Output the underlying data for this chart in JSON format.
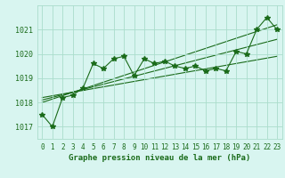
{
  "title": "Graphe pression niveau de la mer (hPa)",
  "background_color": "#d8f5f0",
  "grid_color": "#aaddcc",
  "line_color": "#1a6b1a",
  "x_ticks": [
    0,
    1,
    2,
    3,
    4,
    5,
    6,
    7,
    8,
    9,
    10,
    11,
    12,
    13,
    14,
    15,
    16,
    17,
    18,
    19,
    20,
    21,
    22,
    23
  ],
  "y_ticks": [
    1017,
    1018,
    1019,
    1020,
    1021
  ],
  "ylim": [
    1016.5,
    1022.0
  ],
  "xlim": [
    -0.5,
    23.5
  ],
  "main_data": [
    1017.5,
    1017.0,
    1018.2,
    1018.3,
    1018.6,
    1019.6,
    1019.4,
    1019.8,
    1019.9,
    1019.1,
    1019.8,
    1019.6,
    1019.7,
    1019.5,
    1019.4,
    1019.5,
    1019.3,
    1019.4,
    1019.3,
    1020.1,
    1020.0,
    1021.0,
    1021.5,
    1021.0
  ],
  "trend1": [
    1018.0,
    1021.2
  ],
  "trend1_x": [
    0,
    23
  ],
  "trend2": [
    1018.1,
    1020.6
  ],
  "trend2_x": [
    0,
    23
  ],
  "trend3": [
    1018.2,
    1019.9
  ],
  "trend3_x": [
    0,
    23
  ],
  "ylabel_fontsize": 6,
  "xlabel_fontsize": 5.5,
  "title_fontsize": 6.5
}
